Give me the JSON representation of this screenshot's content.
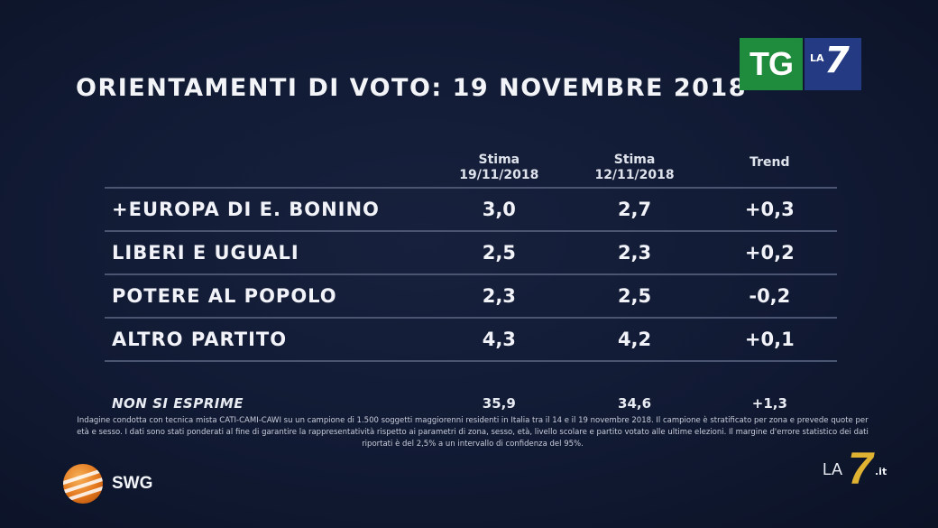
{
  "title": "ORIENTAMENTI DI VOTO: 19 NOVEMBRE 2018",
  "logo": {
    "tg": "TG",
    "la": "LA",
    "seven": "7"
  },
  "table": {
    "headers": [
      {
        "line1": "Stima",
        "line2": "19/11/2018"
      },
      {
        "line1": "Stima",
        "line2": "12/11/2018"
      },
      {
        "line1": "Trend",
        "line2": ""
      }
    ],
    "rows": [
      {
        "party": "+EUROPA DI E. BONINO",
        "stima_19": "3,0",
        "stima_12": "2,7",
        "trend": "+0,3"
      },
      {
        "party": "LIBERI E UGUALI",
        "stima_19": "2,5",
        "stima_12": "2,3",
        "trend": "+0,2"
      },
      {
        "party": "POTERE AL POPOLO",
        "stima_19": "2,3",
        "stima_12": "2,5",
        "trend": "-0,2"
      },
      {
        "party": "ALTRO PARTITO",
        "stima_19": "4,3",
        "stima_12": "4,2",
        "trend": "+0,1"
      }
    ],
    "non_si_esprime": {
      "party": "NON SI ESPRIME",
      "stima_19": "35,9",
      "stima_12": "34,6",
      "trend": "+1,3"
    }
  },
  "chart_data": {
    "type": "table",
    "title": "ORIENTAMENTI DI VOTO: 19 NOVEMBRE 2018",
    "columns": [
      "Stima 19/11/2018",
      "Stima 12/11/2018",
      "Trend"
    ],
    "rows": [
      {
        "label": "+EUROPA DI E. BONINO",
        "values": [
          3.0,
          2.7,
          0.3
        ]
      },
      {
        "label": "LIBERI E UGUALI",
        "values": [
          2.5,
          2.3,
          0.2
        ]
      },
      {
        "label": "POTERE AL POPOLO",
        "values": [
          2.3,
          2.5,
          -0.2
        ]
      },
      {
        "label": "ALTRO PARTITO",
        "values": [
          4.3,
          4.2,
          0.1
        ]
      },
      {
        "label": "NON SI ESPRIME",
        "values": [
          35.9,
          34.6,
          1.3
        ]
      }
    ]
  },
  "note": "Indagine condotta con tecnica mista CATI-CAMI-CAWI su un campione di 1.500 soggetti maggiorenni residenti in Italia tra il 14 e il 19 novembre 2018. Il campione è stratificato per zona e prevede quote per età e sesso. I dati sono stati ponderati al fine di garantire la rappresentatività rispetto ai parametri di zona, sesso, età, livello scolare e partito votato alle ultime elezioni. Il margine d'errore statistico dei dati riportati è del 2,5% a un intervallo di confidenza del 95%.",
  "source": {
    "name": "SWG"
  },
  "corner_logo": {
    "la": "LA",
    "seven": "7",
    "it": ".it"
  },
  "colors": {
    "background": "#0f1730",
    "tg_green": "#1f8b3c",
    "la7_blue": "#243b84",
    "la7_gold": "#e0b232",
    "divider": "#4a5572"
  }
}
